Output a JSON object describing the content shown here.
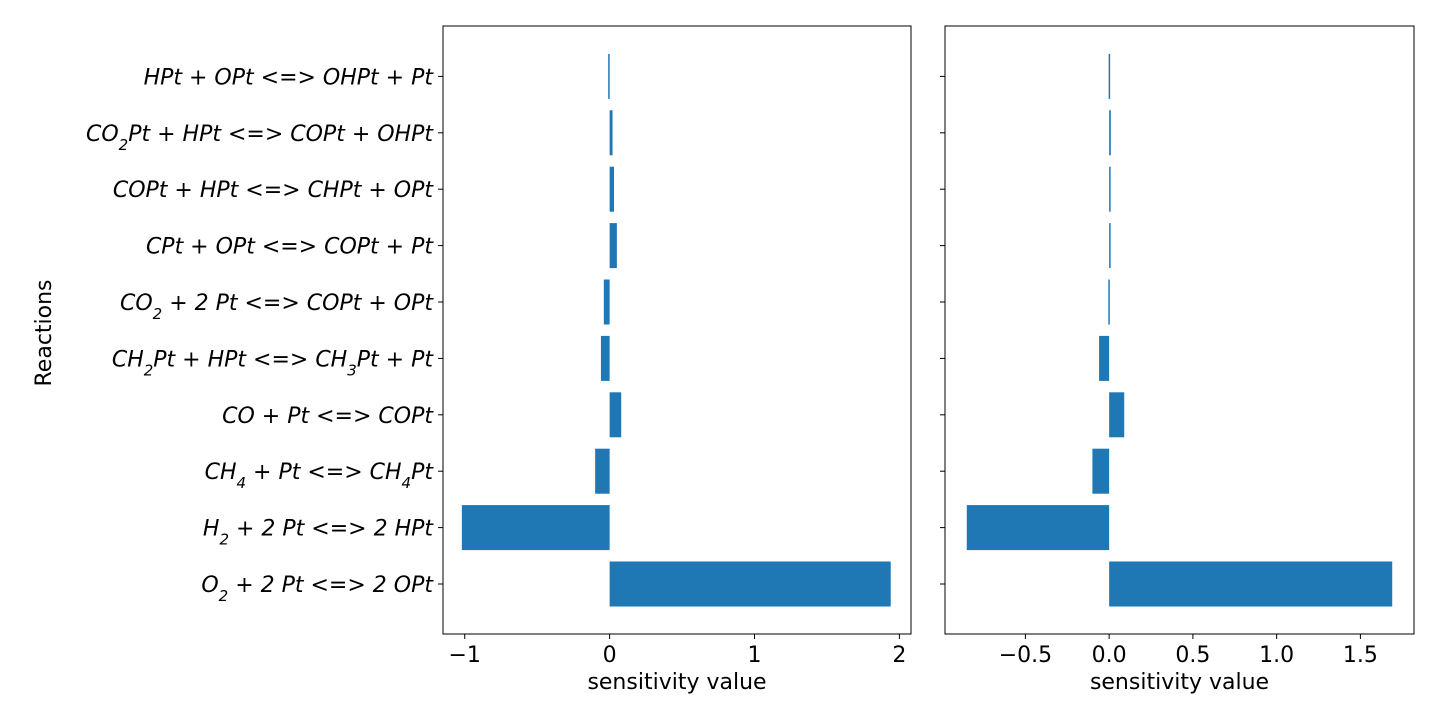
{
  "chart_data": [
    {
      "type": "bar",
      "orientation": "horizontal",
      "categories": [
        "O_2 + 2 Pt <=> 2 OPt",
        "H_2 + 2 Pt <=> 2 HPt",
        "CH_4 + Pt <=> CH_4Pt",
        "CO + Pt <=> COPt",
        "CH_2Pt + HPt <=> CH_3Pt + Pt",
        "CO_2 + 2 Pt <=> COPt + OPt",
        "CPt + OPt <=> COPt + Pt",
        "COPt + HPt <=> CHPt + OPt",
        "CO_2Pt + HPt <=> COPt + OHPt",
        "HPt + OPt <=> OHPt + Pt"
      ],
      "values": [
        1.94,
        -1.02,
        -0.1,
        0.08,
        -0.06,
        -0.04,
        0.05,
        0.03,
        0.02,
        -0.01
      ],
      "xlim": [
        -1.15,
        2.08
      ],
      "xticks": [
        -1,
        0,
        1,
        2
      ],
      "xtick_labels": [
        "−1",
        "0",
        "1",
        "2"
      ],
      "xlabel": "sensitivity value",
      "ylabel": "Reactions",
      "color": "#1f77b4"
    },
    {
      "type": "bar",
      "orientation": "horizontal",
      "categories": [
        "O_2 + 2 Pt <=> 2 OPt",
        "H_2 + 2 Pt <=> 2 HPt",
        "CH_4 + Pt <=> CH_4Pt",
        "CO + Pt <=> COPt",
        "CH_2Pt + HPt <=> CH_3Pt + Pt",
        "CO_2 + 2 Pt <=> COPt + OPt",
        "CPt + OPt <=> COPt + Pt",
        "COPt + HPt <=> CHPt + OPt",
        "CO_2Pt + HPt <=> COPt + OHPt",
        "HPt + OPt <=> OHPt + Pt"
      ],
      "values": [
        1.69,
        -0.85,
        -0.1,
        0.09,
        -0.06,
        -0.005,
        0.005,
        0.005,
        0.01,
        -0.003
      ],
      "xlim": [
        -0.98,
        1.82
      ],
      "xticks": [
        -0.5,
        0.0,
        0.5,
        1.0,
        1.5
      ],
      "xtick_labels": [
        "−0.5",
        "0.0",
        "0.5",
        "1.0",
        "1.5"
      ],
      "xlabel": "sensitivity value",
      "ylabel": "",
      "color": "#1f77b4"
    }
  ]
}
